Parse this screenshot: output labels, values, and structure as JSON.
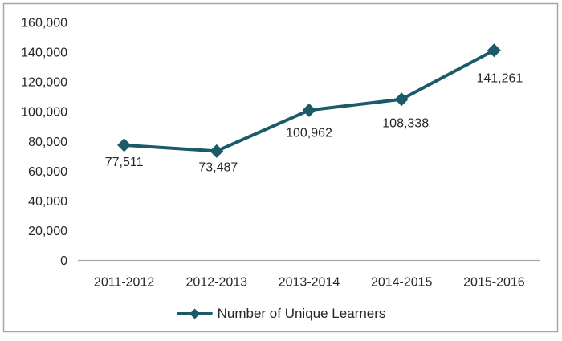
{
  "chart_data": {
    "type": "line",
    "title": "",
    "xlabel": "",
    "ylabel": "",
    "categories": [
      "2011-2012",
      "2012-2013",
      "2013-2014",
      "2014-2015",
      "2015-2016"
    ],
    "series": [
      {
        "name": "Number of Unique Learners",
        "values": [
          77511,
          73487,
          100962,
          108338,
          141261
        ]
      }
    ],
    "data_labels": [
      "77,511",
      "73,487",
      "100,962",
      "108,338",
      "141,261"
    ],
    "y_ticks": [
      "0",
      "20,000",
      "40,000",
      "60,000",
      "80,000",
      "100,000",
      "120,000",
      "140,000",
      "160,000"
    ],
    "ylim": [
      0,
      160000
    ],
    "ytick_step": 20000,
    "grid": false,
    "marker": "diamond",
    "legend_position": "bottom-center",
    "colors": {
      "series": "#1b5a69",
      "axis_line": "#a6a6a6",
      "border": "#a6a6a6",
      "text": "#262626",
      "background": "#ffffff"
    }
  }
}
